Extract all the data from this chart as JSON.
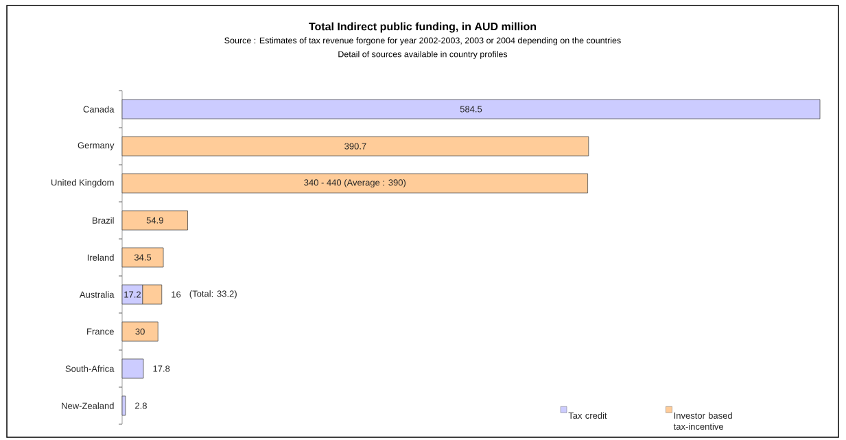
{
  "chart_data": {
    "type": "bar",
    "orientation": "horizontal",
    "stacked": true,
    "title": "Total Indirect public funding, in AUD million",
    "subtitle": "Source : Estimates of tax revenue forgone for year 2002-2003, 2003 or 2004 depending on the countries",
    "annotations": [
      "Detail of sources available in country profiles"
    ],
    "categories": [
      "Canada",
      "Germany",
      "United Kingdom",
      "Brazil",
      "Ireland",
      "Australia",
      "France",
      "South-Africa",
      "New-Zealand"
    ],
    "series": [
      {
        "name": "Tax credit",
        "color": "#ccccff",
        "values": [
          584.5,
          null,
          null,
          null,
          null,
          17.2,
          null,
          17.8,
          2.8
        ],
        "value_labels": [
          "584.5",
          null,
          null,
          null,
          null,
          "17.2",
          null,
          "17.8",
          "2.8"
        ]
      },
      {
        "name": "Investor based tax-incentive",
        "color": "#ffcc99",
        "values": [
          null,
          390.7,
          390,
          54.9,
          34.5,
          16,
          30,
          null,
          null
        ],
        "value_labels": [
          null,
          "390.7",
          "340 - 440 (Average : 390)",
          "54.9",
          "34.5",
          "16",
          "30",
          null,
          null
        ]
      }
    ],
    "totals": [
      null,
      null,
      null,
      null,
      null,
      "(Total: 33.2)",
      null,
      null,
      null
    ],
    "legend": "bottom right"
  }
}
